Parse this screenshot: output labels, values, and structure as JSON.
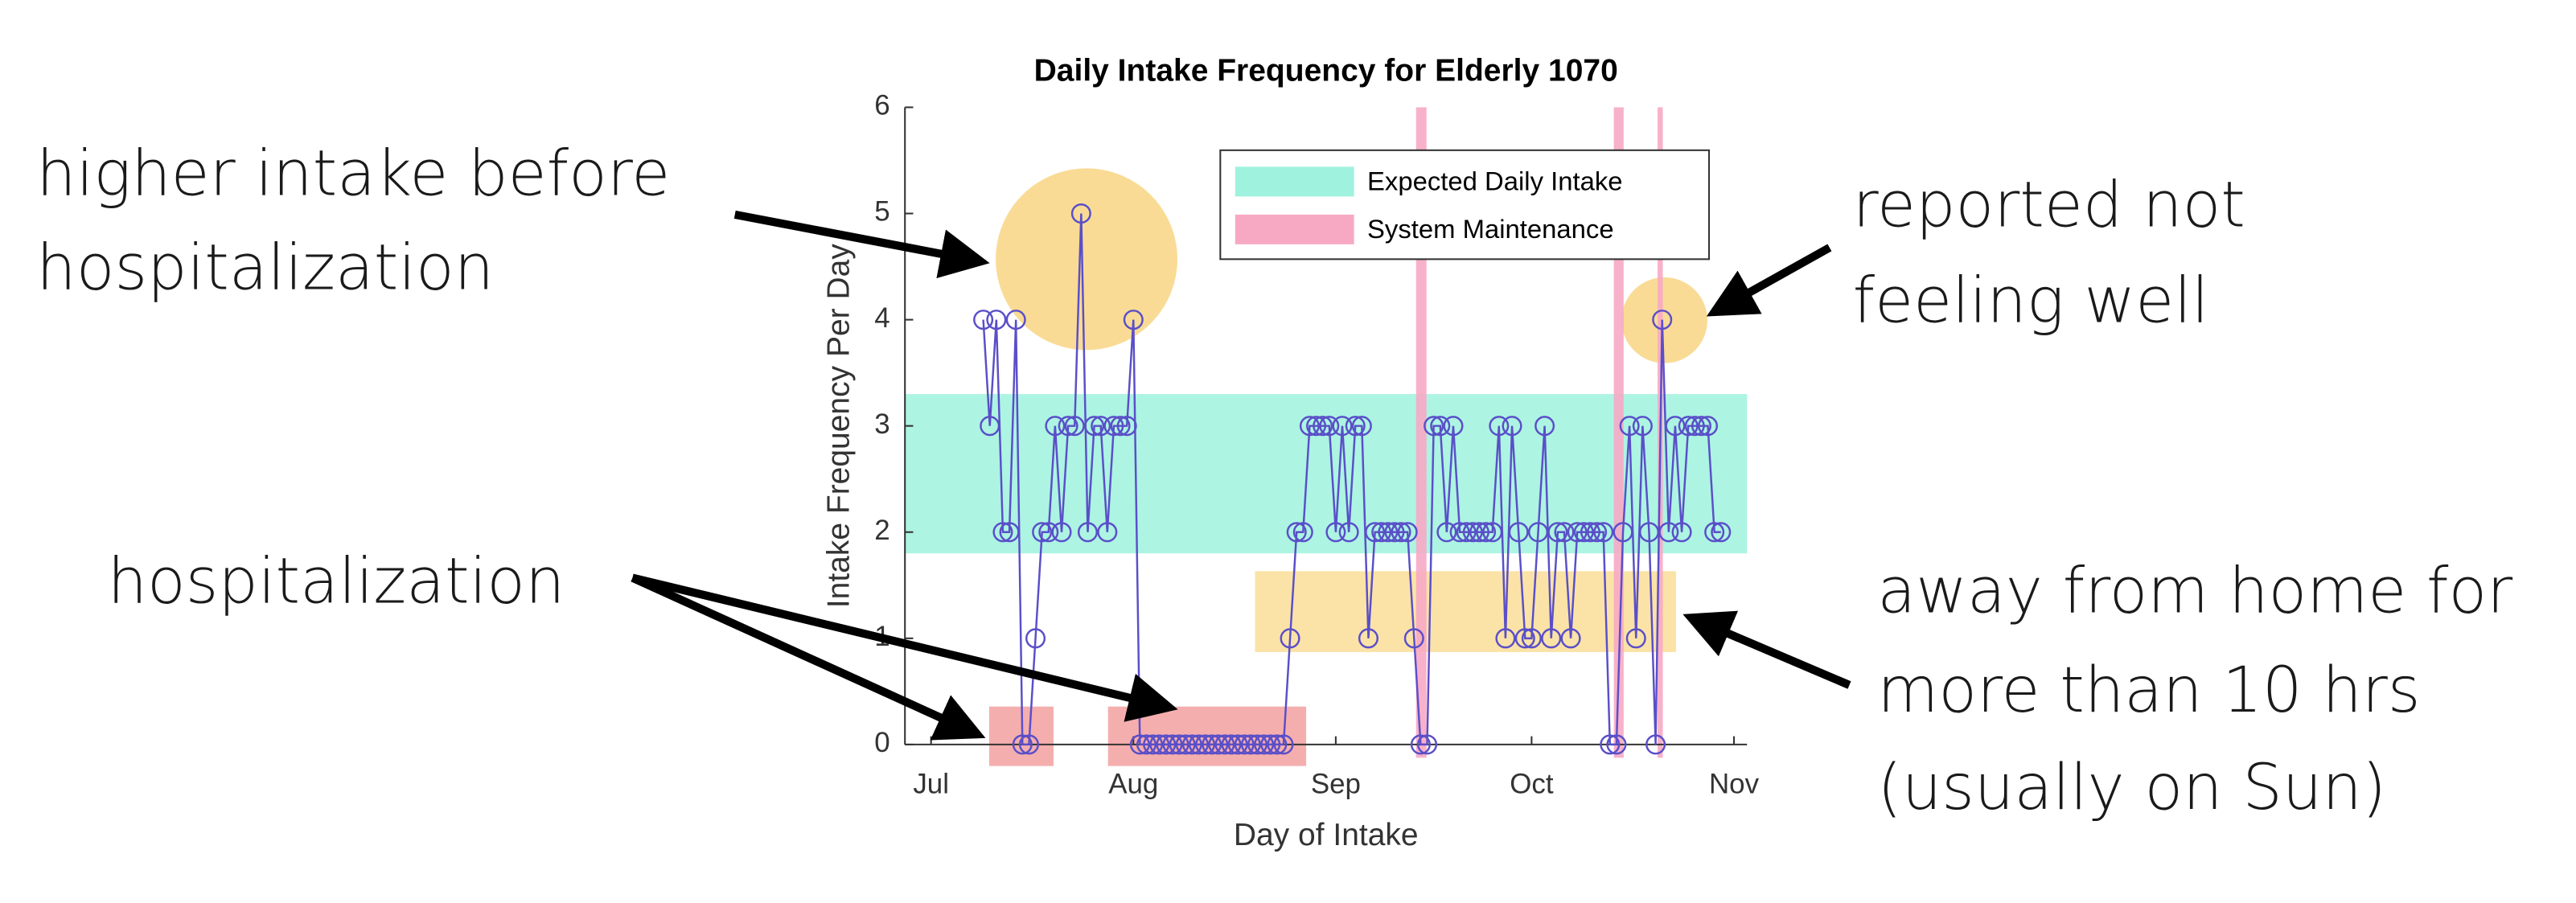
{
  "chart_data": {
    "type": "line",
    "title": "Daily Intake Frequency for Elderly 1070",
    "xlabel": "Day of Intake",
    "ylabel": "Intake Frequency Per Day",
    "color": "#5a4fc8",
    "x": [
      8,
      9,
      10,
      11,
      12,
      13,
      14,
      15,
      16,
      17,
      18,
      19,
      20,
      21,
      22,
      23,
      24,
      25,
      26,
      27,
      28,
      29,
      30,
      31,
      32,
      33,
      34,
      35,
      36,
      37,
      38,
      39,
      40,
      41,
      42,
      43,
      44,
      45,
      46,
      47,
      48,
      49,
      50,
      51,
      52,
      53,
      54,
      55,
      56,
      57,
      58,
      59,
      60,
      61,
      62,
      63,
      64,
      65,
      66,
      67,
      68,
      69,
      70,
      71,
      72,
      73,
      74,
      75,
      76,
      77,
      78,
      79,
      80,
      81,
      82,
      83,
      84,
      85,
      86,
      87,
      88,
      89,
      90,
      91,
      92,
      93,
      94,
      95,
      96,
      97,
      98,
      99,
      100,
      101,
      102,
      103,
      104,
      105,
      106,
      107,
      108,
      109,
      110,
      111,
      112,
      113,
      114,
      115,
      116,
      117,
      118,
      119,
      120,
      121
    ],
    "values": [
      4,
      3,
      4,
      2,
      2,
      4,
      0,
      0,
      1,
      2,
      2,
      3,
      2,
      3,
      3,
      5,
      2,
      3,
      3,
      2,
      3,
      3,
      3,
      4,
      0,
      0,
      0,
      0,
      0,
      0,
      0,
      0,
      0,
      0,
      0,
      0,
      0,
      0,
      0,
      0,
      0,
      0,
      0,
      0,
      0,
      0,
      0,
      1,
      2,
      2,
      3,
      3,
      3,
      3,
      2,
      3,
      2,
      3,
      3,
      1,
      2,
      2,
      2,
      2,
      2,
      2,
      1,
      0,
      0,
      3,
      3,
      2,
      3,
      2,
      2,
      2,
      2,
      2,
      2,
      3,
      1,
      3,
      2,
      1,
      1,
      2,
      3,
      1,
      2,
      2,
      1,
      2,
      2,
      2,
      2,
      2,
      0,
      0,
      2,
      3,
      1,
      3,
      2,
      0,
      4,
      2,
      3,
      2,
      3,
      3,
      3,
      3,
      2,
      2
    ],
    "xlim": [
      -4,
      125
    ],
    "xticks": [
      {
        "value": 0,
        "label": "Jul"
      },
      {
        "value": 31,
        "label": "Aug"
      },
      {
        "value": 62,
        "label": "Sep"
      },
      {
        "value": 92,
        "label": "Oct"
      },
      {
        "value": 123,
        "label": "Nov"
      }
    ],
    "ylim": [
      0,
      6
    ],
    "yticks": [
      0,
      1,
      2,
      3,
      4,
      5,
      6
    ],
    "regions": [
      {
        "name": "Expected Daily Intake",
        "color": "#9ff2de",
        "y": [
          1.8,
          3.3
        ]
      },
      {
        "name": "System Maintenance",
        "color": "#f7a9c4",
        "x": [
          [
            74.3,
            75.9
          ],
          [
            104.6,
            106.1
          ],
          [
            111.3,
            112.1
          ]
        ]
      }
    ]
  },
  "annotations": [
    {
      "lines": [
        "higher intake before",
        "hospitalization"
      ]
    },
    {
      "lines": [
        "hospitalization"
      ]
    },
    {
      "lines": [
        "reported not",
        "feeling well"
      ]
    },
    {
      "lines": [
        "away from home for",
        "more than 10 hrs",
        "(usually on Sun)"
      ]
    }
  ]
}
